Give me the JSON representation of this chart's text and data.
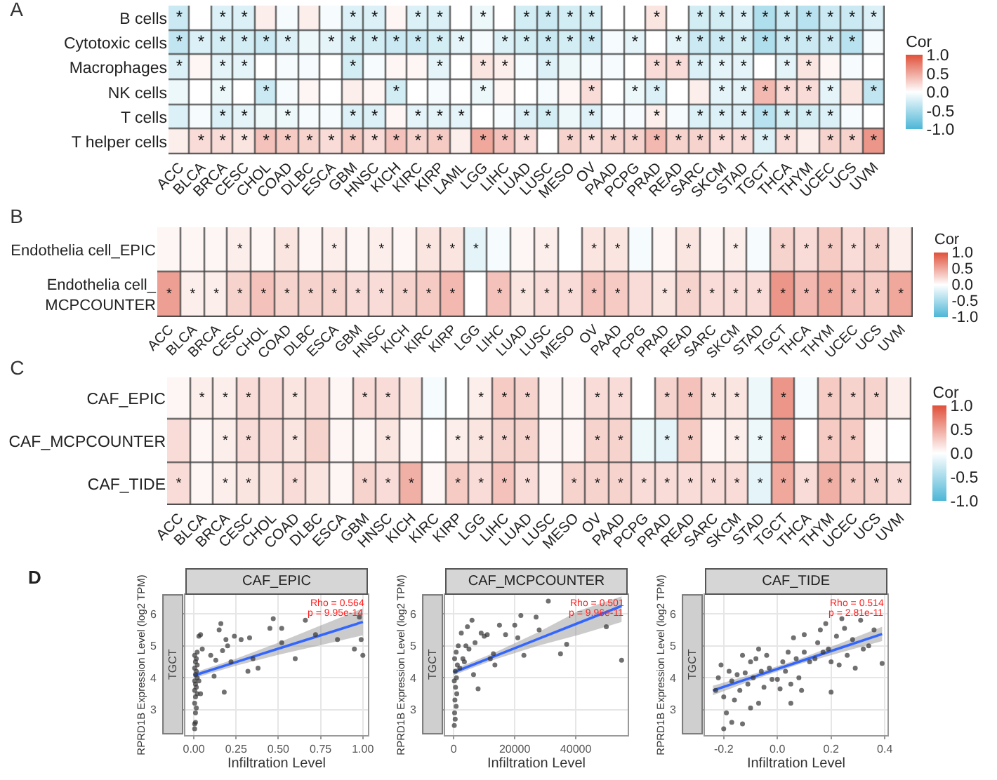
{
  "chart_data": [
    {
      "type": "heatmap",
      "title": "A",
      "clabel": "Cor",
      "clim": [
        -1,
        1
      ],
      "cticks": [
        {
          "value": -1,
          "label": "-1.0"
        },
        {
          "value": -0.5,
          "label": "-0.5"
        },
        {
          "value": 0,
          "label": "0.0"
        },
        {
          "value": 0.5,
          "label": "0.5"
        },
        {
          "value": 1,
          "label": "1.0"
        }
      ],
      "categories": [
        "ACC",
        "BLCA",
        "BRCA",
        "CESC",
        "CHOL",
        "COAD",
        "DLBC",
        "ESCA",
        "GBM",
        "HNSC",
        "KICH",
        "KIRC",
        "KIRP",
        "LAML",
        "LGG",
        "LIHC",
        "LUAD",
        "LUSC",
        "MESO",
        "OV",
        "PAAD",
        "PCPG",
        "PRAD",
        "READ",
        "SARC",
        "SKCM",
        "STAD",
        "TGCT",
        "THCA",
        "THYM",
        "UCEC",
        "UCS",
        "UVM"
      ],
      "y_categories": [
        "B cells",
        "Cytotoxic cells",
        "Macrophages",
        "NK cells",
        "T cells",
        "T helper cells"
      ],
      "cells": [
        [
          -0.3,
          0,
          -0.2,
          -0.2,
          0.1,
          -0.05,
          0.1,
          -0.05,
          -0.2,
          -0.2,
          0.05,
          -0.2,
          -0.2,
          0,
          -0.1,
          0,
          -0.25,
          -0.3,
          -0.25,
          -0.25,
          0,
          0,
          0.15,
          0,
          -0.25,
          -0.25,
          -0.2,
          -0.45,
          -0.3,
          -0.4,
          -0.3,
          -0.3,
          -0.2
        ],
        [
          -0.35,
          -0.2,
          -0.25,
          -0.25,
          -0.3,
          -0.2,
          -0.1,
          -0.15,
          -0.25,
          -0.25,
          -0.3,
          -0.3,
          -0.25,
          -0.15,
          -0.05,
          -0.2,
          -0.25,
          -0.3,
          -0.25,
          -0.3,
          -0.05,
          -0.15,
          0,
          -0.15,
          -0.3,
          -0.3,
          -0.25,
          -0.45,
          -0.3,
          -0.3,
          -0.3,
          -0.4,
          -0.05
        ],
        [
          -0.2,
          0.05,
          -0.15,
          -0.15,
          0,
          -0.05,
          -0.05,
          0,
          -0.25,
          -0.05,
          0.05,
          0.05,
          -0.15,
          0,
          0.15,
          0.1,
          -0.05,
          -0.2,
          -0.1,
          -0.05,
          -0.05,
          0,
          0.2,
          0.2,
          -0.2,
          -0.15,
          -0.15,
          0,
          -0.15,
          0.15,
          0.05,
          -0.05,
          0
        ],
        [
          -0.1,
          0,
          -0.1,
          0,
          -0.3,
          -0.05,
          0.05,
          0,
          0.1,
          0.05,
          -0.25,
          0,
          -0.05,
          0,
          -0.1,
          0.05,
          0,
          -0.05,
          0.05,
          0.2,
          0,
          -0.1,
          -0.2,
          0,
          0.1,
          -0.15,
          -0.15,
          0.4,
          0.2,
          0.2,
          -0.15,
          0.15,
          -0.35
        ],
        [
          -0.2,
          -0.05,
          -0.2,
          -0.15,
          -0.1,
          -0.1,
          -0.05,
          -0.05,
          -0.2,
          -0.2,
          0.05,
          -0.15,
          -0.15,
          -0.15,
          0,
          -0.05,
          -0.2,
          -0.25,
          -0.1,
          -0.2,
          -0.05,
          -0.05,
          0.1,
          -0.05,
          -0.2,
          -0.2,
          -0.2,
          -0.4,
          -0.25,
          -0.25,
          -0.2,
          -0.05,
          0
        ],
        [
          0.1,
          0.2,
          0.2,
          0.15,
          0.35,
          0.3,
          0.25,
          0.2,
          0.3,
          0.2,
          0.35,
          0.25,
          0.3,
          0.1,
          0.5,
          0.35,
          0.2,
          0,
          0.25,
          0.2,
          0.25,
          0.25,
          0.4,
          0.25,
          0.25,
          0.2,
          0.2,
          -0.2,
          0.2,
          0.1,
          0.25,
          0.25,
          0.6
        ]
      ],
      "cell_labels": [
        [
          "*",
          null,
          "*",
          "*",
          null,
          null,
          null,
          null,
          "*",
          "*",
          null,
          "*",
          "*",
          null,
          "*",
          null,
          "*",
          "*",
          "*",
          "*",
          null,
          null,
          "*",
          null,
          "*",
          "*",
          "*",
          "*",
          "*",
          "*",
          "*",
          "*",
          "*"
        ],
        [
          "*",
          "*",
          "*",
          "*",
          "*",
          "*",
          null,
          "*",
          "*",
          "*",
          "*",
          "*",
          "*",
          "*",
          null,
          "*",
          "*",
          "*",
          "*",
          "*",
          null,
          "*",
          null,
          "*",
          "*",
          "*",
          "*",
          "*",
          "*",
          "*",
          "*",
          "*",
          null
        ],
        [
          "*",
          null,
          "*",
          "*",
          null,
          null,
          null,
          null,
          "*",
          null,
          null,
          null,
          "*",
          null,
          "*",
          "*",
          null,
          "*",
          null,
          null,
          null,
          null,
          "*",
          "*",
          "*",
          "*",
          "*",
          null,
          "*",
          "*",
          null,
          null,
          null
        ],
        [
          null,
          null,
          "*",
          null,
          "*",
          null,
          null,
          null,
          null,
          null,
          "*",
          null,
          null,
          null,
          "*",
          null,
          null,
          null,
          null,
          "*",
          null,
          "*",
          "*",
          null,
          null,
          "*",
          "*",
          "*",
          "*",
          "*",
          "*",
          null,
          "*"
        ],
        [
          null,
          null,
          "*",
          "*",
          null,
          "*",
          null,
          null,
          "*",
          "*",
          null,
          "*",
          "*",
          "*",
          null,
          null,
          "*",
          "*",
          null,
          "*",
          null,
          null,
          "*",
          null,
          "*",
          "*",
          "*",
          "*",
          "*",
          "*",
          "*",
          null,
          null
        ],
        [
          null,
          "*",
          "*",
          "*",
          "*",
          "*",
          "*",
          "*",
          "*",
          "*",
          "*",
          "*",
          "*",
          null,
          "*",
          "*",
          "*",
          null,
          "*",
          "*",
          "*",
          "*",
          "*",
          "*",
          "*",
          "*",
          "*",
          "*",
          "*",
          null,
          "*",
          "*",
          "*"
        ]
      ]
    },
    {
      "type": "heatmap",
      "title": "B",
      "clabel": "Cor",
      "clim": [
        -1,
        1
      ],
      "cticks": [
        {
          "value": -1,
          "label": "-1.0"
        },
        {
          "value": -0.5,
          "label": "-0.5"
        },
        {
          "value": 0,
          "label": "0.0"
        },
        {
          "value": 0.5,
          "label": "0.5"
        },
        {
          "value": 1,
          "label": "1.0"
        }
      ],
      "categories": [
        "ACC",
        "BLCA",
        "BRCA",
        "CESC",
        "CHOL",
        "COAD",
        "DLBC",
        "ESCA",
        "GBM",
        "HNSC",
        "KICH",
        "KIRC",
        "KIRP",
        "LGG",
        "LIHC",
        "LUAD",
        "LUSC",
        "MESO",
        "OV",
        "PAAD",
        "PCPG",
        "PRAD",
        "READ",
        "SARC",
        "SKCM",
        "STAD",
        "TGCT",
        "THCA",
        "THYM",
        "UCEC",
        "UCS",
        "UVM"
      ],
      "y_categories": [
        "Endothelia cell_EPIC",
        "Endothelia cell_\nMCPCOUNTER"
      ],
      "cells": [
        [
          0.05,
          0.05,
          0.05,
          0.1,
          0.05,
          0.15,
          0.05,
          0.1,
          0.05,
          0.1,
          0.05,
          0.15,
          0.15,
          -0.15,
          -0.05,
          0.05,
          0.1,
          0,
          0.15,
          0.15,
          -0.05,
          0.05,
          0.15,
          0.05,
          0.1,
          -0.05,
          0.25,
          0.2,
          0.3,
          0.2,
          0.25,
          0.1
        ],
        [
          0.55,
          0.1,
          0.1,
          0.25,
          0.35,
          0.25,
          0.25,
          0.25,
          0.2,
          0.2,
          0.25,
          0.3,
          0.4,
          0,
          0.35,
          0.15,
          0.2,
          0.2,
          0.35,
          0.3,
          0.2,
          0.15,
          0.25,
          0.2,
          0.2,
          0.2,
          0.6,
          0.4,
          0.5,
          0.35,
          0.3,
          0.5
        ]
      ],
      "cell_labels": [
        [
          null,
          null,
          null,
          "*",
          null,
          "*",
          null,
          "*",
          null,
          "*",
          null,
          "*",
          "*",
          "*",
          null,
          null,
          "*",
          null,
          "*",
          "*",
          null,
          null,
          "*",
          null,
          "*",
          null,
          "*",
          "*",
          "*",
          "*",
          "*",
          null
        ],
        [
          "*",
          "*",
          "*",
          "*",
          "*",
          "*",
          "*",
          "*",
          "*",
          "*",
          "*",
          "*",
          "*",
          null,
          "*",
          "*",
          "*",
          "*",
          "*",
          "*",
          null,
          "*",
          "*",
          "*",
          "*",
          "*",
          "*",
          "*",
          "*",
          "*",
          "*",
          "*"
        ]
      ]
    },
    {
      "type": "heatmap",
      "title": "C",
      "clabel": "Cor",
      "clim": [
        -1,
        1
      ],
      "cticks": [
        {
          "value": -1,
          "label": "-1.0"
        },
        {
          "value": -0.5,
          "label": "-0.5"
        },
        {
          "value": 0,
          "label": "0.0"
        },
        {
          "value": 0.5,
          "label": "0.5"
        },
        {
          "value": 1,
          "label": "1.0"
        }
      ],
      "categories": [
        "ACC",
        "BLCA",
        "BRCA",
        "CESC",
        "CHOL",
        "COAD",
        "DLBC",
        "ESCA",
        "GBM",
        "HNSC",
        "KICH",
        "KIRC",
        "KIRP",
        "LGG",
        "LIHC",
        "LUAD",
        "LUSC",
        "MESO",
        "OV",
        "PAAD",
        "PCPG",
        "PRAD",
        "READ",
        "SARC",
        "SKCM",
        "STAD",
        "TGCT",
        "THCA",
        "THYM",
        "UCEC",
        "UCS",
        "UVM"
      ],
      "y_categories": [
        "CAF_EPIC",
        "CAF_MCPCOUNTER",
        "CAF_TIDE"
      ],
      "cells": [
        [
          0.05,
          0.1,
          0.1,
          0.2,
          0.2,
          0.15,
          0.2,
          0.05,
          0.2,
          0.2,
          0.15,
          -0.05,
          0,
          0.1,
          0.3,
          0.25,
          0.05,
          0.05,
          0.2,
          0.2,
          0,
          0.25,
          0.35,
          0.15,
          0.15,
          -0.1,
          0.6,
          -0.05,
          0.3,
          0.25,
          0.25,
          0.1
        ],
        [
          0.2,
          0.05,
          0.1,
          0.2,
          0.2,
          0.15,
          0.25,
          0.05,
          0.05,
          0.15,
          0.05,
          0,
          0.1,
          0.15,
          0.25,
          0.25,
          0.05,
          0.05,
          0.25,
          0.25,
          -0.1,
          -0.15,
          0.3,
          0.05,
          0.1,
          -0.1,
          0.55,
          0,
          0.3,
          0.3,
          0.05,
          0
        ],
        [
          0.2,
          0.05,
          0.1,
          0.15,
          0.15,
          0.2,
          0.15,
          0.05,
          0.25,
          0.2,
          0.45,
          0.05,
          0.3,
          0.2,
          0.35,
          0.2,
          0.05,
          0.25,
          0.25,
          0.25,
          0.2,
          0.2,
          0.2,
          0.2,
          0.2,
          -0.15,
          0.5,
          0.2,
          0.45,
          0.3,
          0.25,
          0.2
        ]
      ],
      "cell_labels": [
        [
          null,
          "*",
          "*",
          "*",
          null,
          "*",
          null,
          null,
          "*",
          "*",
          null,
          null,
          null,
          "*",
          "*",
          "*",
          null,
          null,
          "*",
          "*",
          null,
          "*",
          "*",
          "*",
          "*",
          null,
          "*",
          null,
          "*",
          "*",
          "*",
          null
        ],
        [
          null,
          null,
          "*",
          "*",
          null,
          "*",
          null,
          null,
          null,
          "*",
          null,
          null,
          "*",
          "*",
          "*",
          "*",
          null,
          null,
          "*",
          "*",
          null,
          "*",
          "*",
          null,
          "*",
          "*",
          "*",
          null,
          "*",
          "*",
          null,
          null
        ],
        [
          "*",
          null,
          "*",
          "*",
          null,
          "*",
          null,
          null,
          "*",
          "*",
          "*",
          null,
          "*",
          "*",
          "*",
          "*",
          null,
          "*",
          "*",
          "*",
          "*",
          "*",
          "*",
          "*",
          "*",
          "*",
          "*",
          "*",
          "*",
          "*",
          "*",
          "*"
        ]
      ]
    },
    {
      "type": "scatter",
      "title": "CAF_EPIC",
      "xlabel": "Infiltration Level",
      "ylabel": "RPRD1B Expression Level (log2 TPM)",
      "annotations": [
        "TGCT",
        "Rho = 0.564",
        "p = 9.95e-14",
        "D"
      ],
      "grid": true,
      "xlim": [
        -0.05,
        1.03
      ],
      "xticks": [
        {
          "value": 0,
          "label": "0.00"
        },
        {
          "value": 0.25,
          "label": "0.25"
        },
        {
          "value": 0.5,
          "label": "0.50"
        },
        {
          "value": 0.75,
          "label": "0.75"
        },
        {
          "value": 1,
          "label": "1.00"
        }
      ],
      "ylim": [
        2.2,
        6.6
      ],
      "yticks": [
        3,
        4,
        5,
        6
      ],
      "series": [
        {
          "type": "scatter",
          "color": "#333333",
          "marker": "circle",
          "x": [
            0.005,
            0.01,
            0.005,
            0.01,
            0.015,
            0.005,
            0.01,
            0.02,
            0.005,
            0.015,
            0.01,
            0.005,
            0.02,
            0.01,
            0.015,
            0.005,
            0.02,
            0.01,
            0.015,
            0.005,
            0.02,
            0.03,
            0.04,
            0.03,
            0.04,
            0.05,
            0.1,
            0.12,
            0.13,
            0.15,
            0.16,
            0.17,
            0.18,
            0.19,
            0.2,
            0.22,
            0.24,
            0.28,
            0.32,
            0.33,
            0.35,
            0.38,
            0.45,
            0.47,
            0.52,
            0.52,
            0.6,
            0.66,
            0.72,
            0.85,
            0.95,
            0.98,
            0.99,
            1.0
          ],
          "values": [
            2.4,
            2.6,
            2.55,
            2.9,
            3.05,
            3.2,
            3.4,
            3.5,
            3.6,
            3.7,
            3.8,
            3.9,
            4.0,
            4.1,
            4.2,
            4.3,
            4.4,
            4.5,
            4.6,
            4.7,
            4.8,
            3.9,
            3.5,
            5.3,
            5.35,
            4.9,
            4.7,
            4.05,
            4.55,
            5.5,
            5.7,
            4.85,
            3.55,
            5.2,
            5.0,
            4.5,
            5.3,
            5.2,
            4.2,
            5.25,
            4.6,
            4.3,
            5.55,
            5.85,
            5.55,
            5.1,
            4.6,
            5.8,
            5.35,
            5.2,
            4.9,
            5.9,
            5.2,
            4.7
          ]
        },
        {
          "type": "line",
          "color": "#3366ff",
          "x": [
            0,
            0.25,
            0.5,
            0.75,
            1.0
          ],
          "values": [
            4.07,
            4.49,
            4.91,
            5.33,
            5.75
          ],
          "lower": [
            3.98,
            4.38,
            4.72,
            5.02,
            5.33
          ],
          "upper": [
            4.16,
            4.6,
            5.1,
            5.64,
            6.17
          ]
        }
      ]
    },
    {
      "type": "scatter",
      "title": "CAF_MCPCOUNTER",
      "xlabel": "Infiltration Level",
      "ylabel": "RPRD1B Expression Level (log2 TPM)",
      "annotations": [
        "TGCT",
        "Rho = 0.501",
        "p = 9.96e-11"
      ],
      "grid": true,
      "xlim": [
        -2800,
        57000
      ],
      "xticks": [
        0,
        20000,
        40000
      ],
      "ylim": [
        2.2,
        6.6
      ],
      "yticks": [
        3,
        4,
        5,
        6
      ],
      "series": [
        {
          "type": "scatter",
          "color": "#333333",
          "marker": "circle",
          "x": [
            200,
            500,
            300,
            800,
            400,
            1000,
            600,
            200,
            900,
            500,
            1200,
            300,
            800,
            1500,
            2500,
            3000,
            4000,
            4500,
            5000,
            6000,
            7000,
            8000,
            9000,
            10000,
            11000,
            12000,
            13000,
            13500,
            15000,
            17000,
            20000,
            21000,
            22000,
            23000,
            27000,
            28000,
            31000,
            35000,
            37000,
            50000,
            55000,
            2000,
            3500,
            6500
          ],
          "values": [
            2.5,
            2.7,
            2.9,
            3.1,
            3.3,
            3.5,
            3.7,
            3.9,
            4.0,
            4.2,
            4.4,
            4.6,
            4.8,
            5.0,
            5.4,
            4.6,
            5.0,
            5.6,
            4.9,
            5.8,
            5.1,
            3.65,
            5.4,
            5.3,
            5.35,
            4.6,
            4.75,
            4.4,
            5.65,
            5.35,
            5.65,
            5.25,
            5.95,
            4.7,
            5.9,
            5.5,
            6.4,
            4.75,
            5.05,
            5.6,
            4.55,
            4.3,
            4.5,
            4.1
          ]
        },
        {
          "type": "line",
          "color": "#3366ff",
          "x": [
            0,
            13750,
            27500,
            41250,
            55000
          ],
          "values": [
            4.17,
            4.69,
            5.21,
            5.73,
            6.25
          ],
          "lower": [
            4.08,
            4.58,
            5.0,
            5.35,
            5.75
          ],
          "upper": [
            4.26,
            4.8,
            5.42,
            6.11,
            6.55
          ]
        }
      ]
    },
    {
      "type": "scatter",
      "title": "CAF_TIDE",
      "xlabel": "Infiltration Level",
      "ylabel": "RPRD1B Expression Level (log2 TPM)",
      "annotations": [
        "TGCT",
        "Rho = 0.514",
        "p = 2.81e-11"
      ],
      "grid": true,
      "xlim": [
        -0.27,
        0.41
      ],
      "xticks": [
        -0.2,
        {
          "value": 0,
          "label": "0.0"
        },
        0.2,
        0.4
      ],
      "ylim": [
        2.2,
        6.6
      ],
      "yticks": [
        3,
        4,
        5,
        6
      ],
      "series": [
        {
          "type": "scatter",
          "color": "#333333",
          "marker": "circle",
          "x": [
            -0.23,
            -0.22,
            -0.21,
            -0.2,
            -0.2,
            -0.19,
            -0.18,
            -0.17,
            -0.17,
            -0.16,
            -0.15,
            -0.14,
            -0.13,
            -0.13,
            -0.12,
            -0.11,
            -0.1,
            -0.1,
            -0.09,
            -0.08,
            -0.07,
            -0.07,
            -0.06,
            -0.05,
            -0.04,
            -0.03,
            -0.02,
            0.0,
            0.01,
            0.02,
            0.03,
            0.04,
            0.05,
            0.05,
            0.06,
            0.07,
            0.08,
            0.09,
            0.1,
            0.1,
            0.12,
            0.14,
            0.15,
            0.16,
            0.17,
            0.18,
            0.19,
            0.2,
            0.2,
            0.22,
            0.23,
            0.24,
            0.25,
            0.26,
            0.28,
            0.29,
            0.31,
            0.32,
            0.34,
            0.36,
            0.39
          ],
          "values": [
            3.6,
            4.0,
            4.4,
            3.4,
            2.4,
            2.9,
            4.2,
            3.9,
            2.6,
            3.3,
            4.1,
            3.6,
            2.55,
            4.7,
            4.15,
            3.8,
            4.5,
            3.05,
            4.0,
            4.6,
            3.2,
            4.9,
            4.2,
            3.7,
            4.7,
            4.3,
            3.95,
            3.95,
            3.65,
            4.5,
            4.2,
            4.8,
            3.8,
            3.2,
            5.25,
            4.6,
            4.0,
            3.6,
            4.8,
            5.35,
            4.5,
            4.6,
            5.1,
            5.5,
            4.8,
            5.7,
            4.9,
            4.5,
            3.55,
            5.3,
            4.4,
            5.85,
            5.55,
            4.7,
            5.2,
            4.3,
            5.8,
            4.9,
            5.0,
            5.5,
            4.45
          ]
        },
        {
          "type": "line",
          "color": "#3366ff",
          "x": [
            -0.24,
            -0.08,
            0.08,
            0.24,
            0.39
          ],
          "values": [
            3.6,
            4.05,
            4.5,
            4.95,
            5.37
          ],
          "lower": [
            3.45,
            3.96,
            4.42,
            4.8,
            5.15
          ],
          "upper": [
            3.75,
            4.14,
            4.58,
            5.1,
            5.6
          ]
        }
      ]
    }
  ]
}
